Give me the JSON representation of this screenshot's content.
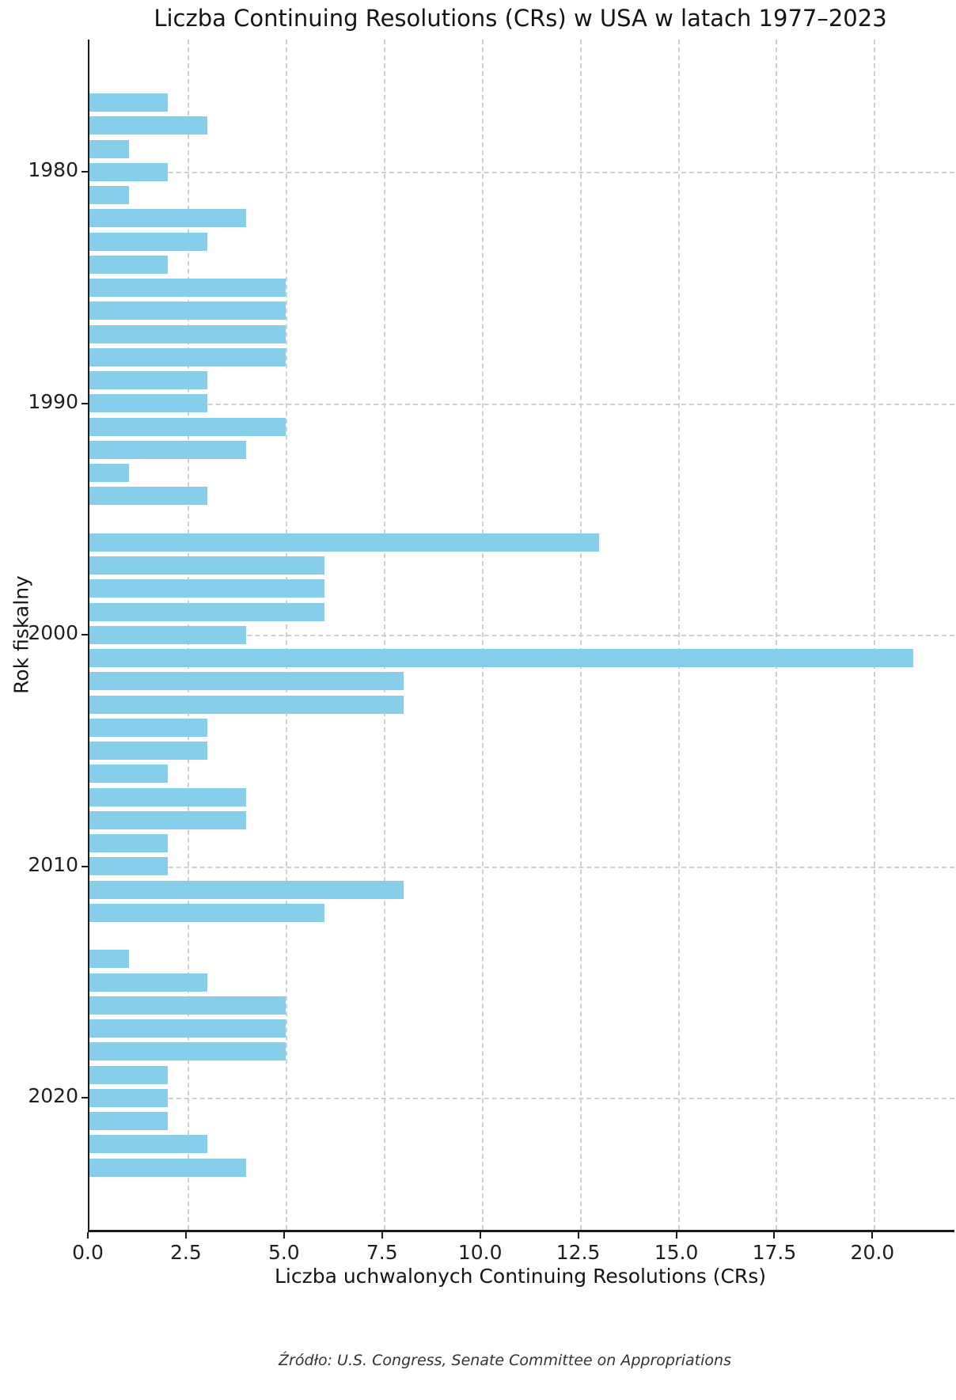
{
  "chart_data": {
    "type": "bar",
    "orientation": "horizontal",
    "title": "Liczba Continuing Resolutions (CRs) w USA w latach 1977–2023",
    "xlabel": "Liczba uchwalonych Continuing Resolutions (CRs)",
    "ylabel": "Rok fiskalny",
    "source_note": "Źródło: U.S. Congress, Senate Committee on Appropriations",
    "categories": [
      "1977",
      "1978",
      "1979",
      "1980",
      "1981",
      "1982",
      "1983",
      "1984",
      "1985",
      "1986",
      "1987",
      "1988",
      "1989",
      "1990",
      "1991",
      "1992",
      "1993",
      "1994",
      "1995",
      "1996",
      "1997",
      "1998",
      "1999",
      "2000",
      "2001",
      "2002",
      "2003",
      "2004",
      "2005",
      "2006",
      "2007",
      "2008",
      "2009",
      "2010",
      "2011",
      "2012",
      "2013",
      "2014",
      "2015",
      "2016",
      "2017",
      "2018",
      "2019",
      "2020",
      "2021",
      "2022",
      "2023"
    ],
    "values": [
      2,
      3,
      1,
      2,
      1,
      4,
      3,
      2,
      5,
      5,
      5,
      5,
      3,
      3,
      5,
      4,
      1,
      3,
      0,
      13,
      6,
      6,
      6,
      4,
      21,
      8,
      8,
      3,
      3,
      2,
      4,
      4,
      2,
      2,
      8,
      6,
      0,
      1,
      3,
      5,
      5,
      5,
      2,
      2,
      2,
      3,
      4
    ],
    "xlim": [
      0,
      22.05
    ],
    "xticks": [
      0,
      2.5,
      5,
      7.5,
      10,
      12.5,
      15,
      17.5,
      20
    ],
    "xtick_labels": [
      "0.0",
      "2.5",
      "5.0",
      "7.5",
      "10.0",
      "12.5",
      "15.0",
      "17.5",
      "20.0"
    ],
    "ytick_labels": [
      "1980",
      "1990",
      "2000",
      "2010",
      "2020"
    ],
    "grid": true,
    "legend": false,
    "bar_color": "#87CEEB",
    "grid_color": "#cfcfcf",
    "axis_color": "#1a1a1a"
  }
}
